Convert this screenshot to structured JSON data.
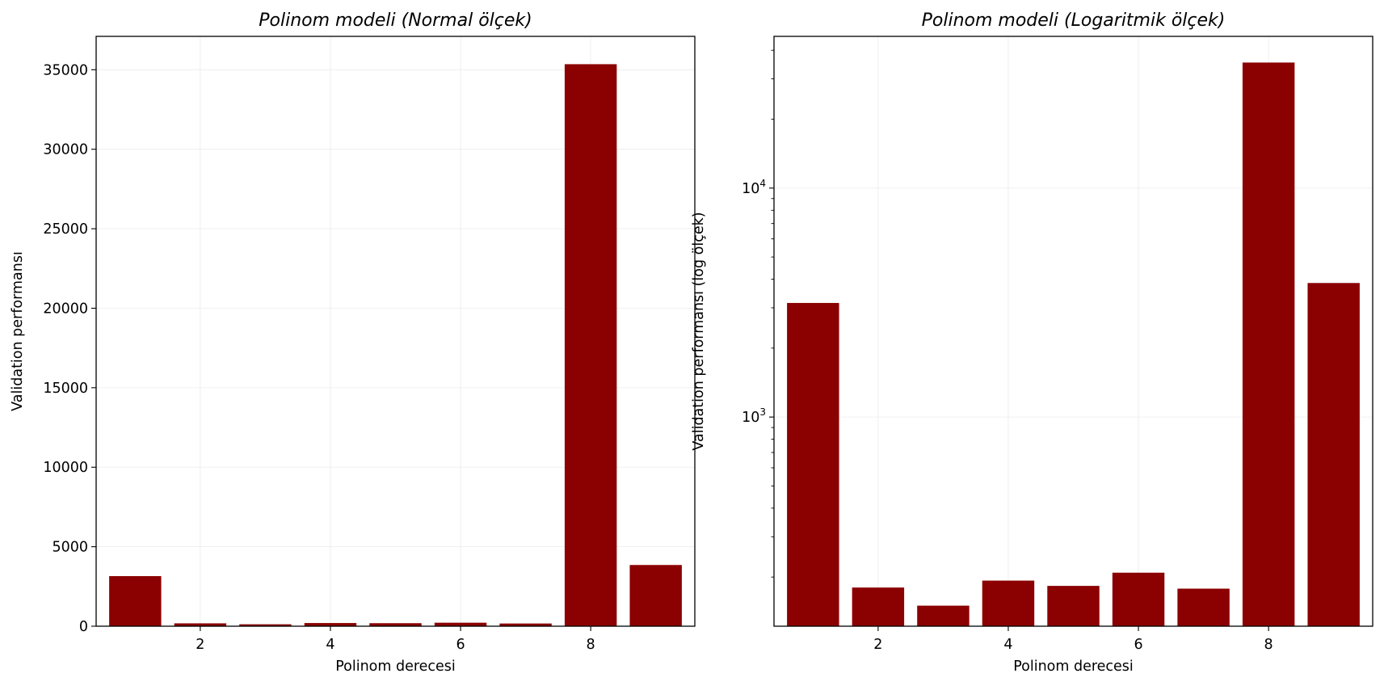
{
  "chart_data": [
    {
      "type": "bar",
      "title": "Polinom modeli (Normal ölçek)",
      "xlabel": "Polinom derecesi",
      "ylabel": "Validation performansı",
      "x": [
        1,
        2,
        3,
        4,
        5,
        6,
        7,
        8,
        9
      ],
      "values": [
        3150,
        180,
        120,
        200,
        190,
        220,
        170,
        35350,
        3850
      ],
      "xlim": [
        0.4,
        9.6
      ],
      "ylim": [
        0,
        37100
      ],
      "xticks": [
        2,
        4,
        6,
        8
      ],
      "xtick_labels": [
        "2",
        "4",
        "6",
        "8"
      ],
      "yticks": [
        0,
        5000,
        10000,
        15000,
        20000,
        25000,
        30000,
        35000
      ],
      "ytick_labels": [
        "0",
        "5000",
        "10000",
        "15000",
        "20000",
        "25000",
        "30000",
        "35000"
      ],
      "yscale": "linear",
      "grid": true,
      "color": "#8b0000"
    },
    {
      "type": "bar",
      "title": "Polinom modeli (Logaritmik ölçek)",
      "xlabel": "Polinom derecesi",
      "ylabel": "Validation performansı (log ölçek)",
      "x": [
        1,
        2,
        3,
        4,
        5,
        6,
        7,
        8,
        9
      ],
      "values": [
        3150,
        180,
        150,
        193,
        183,
        209,
        178,
        35350,
        3850
      ],
      "xlim": [
        0.4,
        9.6
      ],
      "ylim": [
        122,
        46000
      ],
      "xticks": [
        2,
        4,
        6,
        8
      ],
      "xtick_labels": [
        "2",
        "4",
        "6",
        "8"
      ],
      "yticks_major": [
        1000,
        10000
      ],
      "ytick_labels": [
        {
          "base": "10",
          "exp": "3"
        },
        {
          "base": "10",
          "exp": "4"
        }
      ],
      "yscale": "log",
      "grid": true,
      "color": "#8b0000"
    }
  ]
}
